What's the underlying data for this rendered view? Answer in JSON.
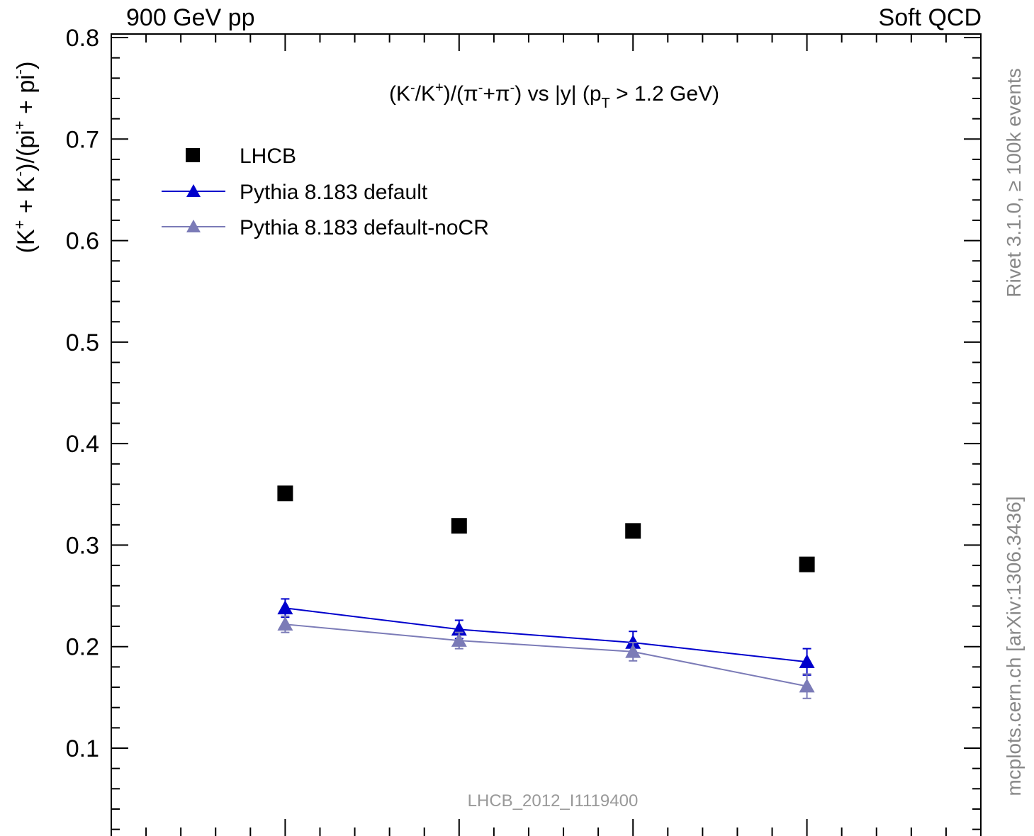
{
  "header": {
    "left": "900 GeV pp",
    "right": "Soft QCD"
  },
  "side_labels": {
    "rivet": "Rivet 3.1.0, ≥ 100k events",
    "mcplots": "mcplots.cern.ch [arXiv:1306.3436]"
  },
  "chart_data": {
    "type": "scatter",
    "title": "(K⁻/K⁺)/(π⁻+π⁻) vs |y| (p_T > 1.2 GeV)",
    "title_parts": {
      "a": "(K",
      "a_sup": "-",
      "b": "/K",
      "b_sup": "+",
      "c": ")/(π",
      "c_sup": "-",
      "d": "+π",
      "d_sup": "-",
      "e": ") vs |y| (p",
      "e_sub": "T",
      "f": " > 1.2 GeV)"
    },
    "ylabel": "(K⁺ + K⁻)/(pi⁺ + pi⁻)",
    "ylabel_parts": {
      "a": "(K",
      "a_sup": "+",
      "b": " + K",
      "b_sup": "-",
      "c": ")/(pi",
      "c_sup": "+",
      "d": " + pi",
      "d_sup": "-",
      "e": ")"
    },
    "xlabel": "",
    "ylim": [
      0.02,
      0.8
    ],
    "xlim": [
      2.0,
      4.5
    ],
    "yticks": [
      "0.1",
      "0.2",
      "0.3",
      "0.4",
      "0.5",
      "0.6",
      "0.7",
      "0.8"
    ],
    "watermark": "LHCB_2012_I1119400",
    "legend_position": "top-left",
    "x": [
      2.5,
      3.0,
      3.5,
      4.0
    ],
    "series": [
      {
        "name": "LHCB",
        "marker": "square",
        "color": "#000000",
        "values": [
          0.351,
          0.319,
          0.314,
          0.281
        ]
      },
      {
        "name": "Pythia 8.183 default",
        "marker": "triangle",
        "color": "#0000cc",
        "values": [
          0.238,
          0.217,
          0.204,
          0.185
        ],
        "errors": [
          0.009,
          0.009,
          0.011,
          0.013
        ]
      },
      {
        "name": "Pythia 8.183 default-noCR",
        "marker": "triangle",
        "color": "#7b7bb7",
        "values": [
          0.222,
          0.206,
          0.195,
          0.161
        ],
        "errors": [
          0.008,
          0.008,
          0.009,
          0.012
        ]
      }
    ]
  }
}
